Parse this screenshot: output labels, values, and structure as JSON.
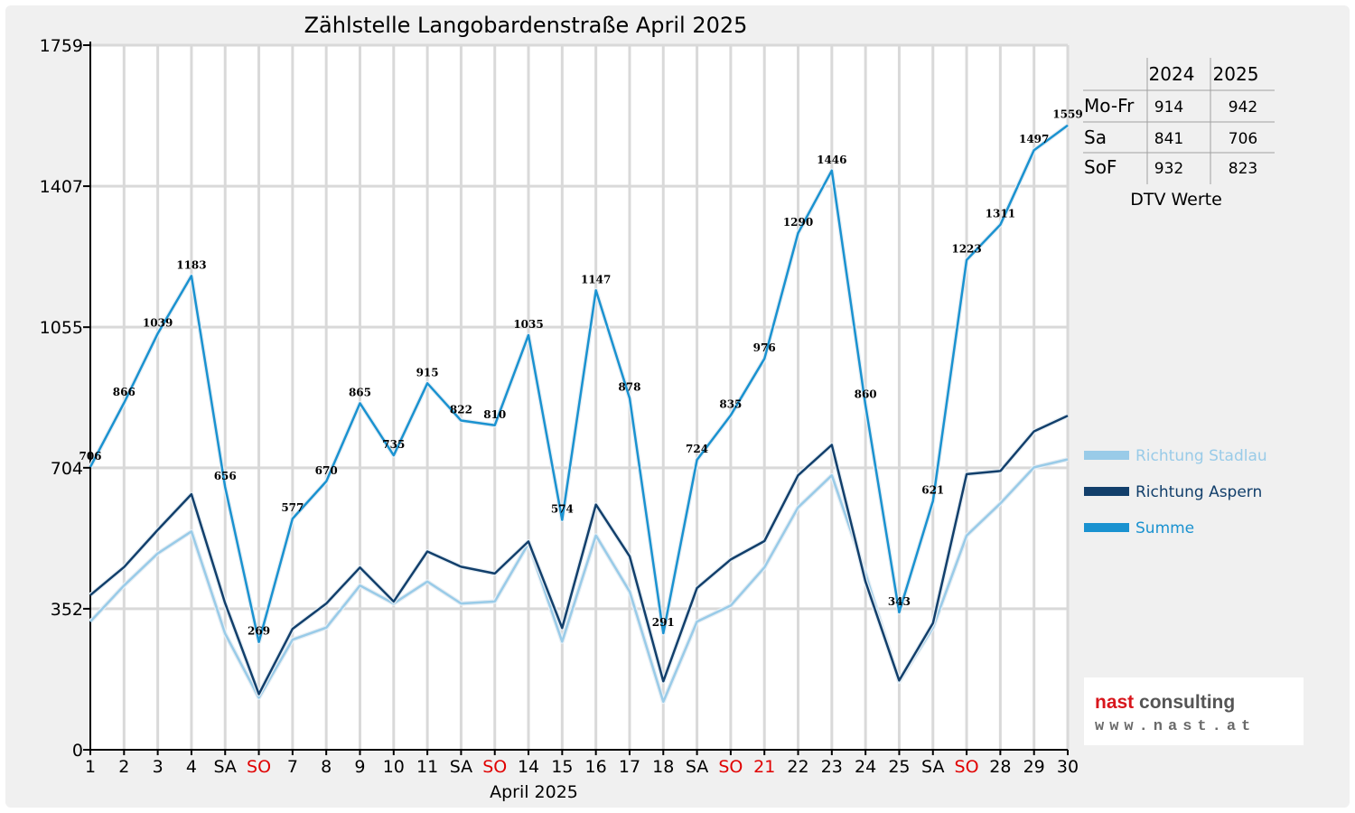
{
  "chart_data": {
    "type": "line",
    "title": "Zählstelle Langobardenstraße April 2025",
    "xlabel": "April 2025",
    "ylabel": "",
    "ylim": [
      0,
      1759
    ],
    "yticks": [
      0,
      352,
      704,
      1055,
      1407,
      1759
    ],
    "grid": true,
    "legend_position": "right",
    "categories": [
      "1",
      "2",
      "3",
      "4",
      "SA",
      "SO",
      "7",
      "8",
      "9",
      "10",
      "11",
      "SA",
      "SO",
      "14",
      "15",
      "16",
      "17",
      "18",
      "SA",
      "SO",
      "21",
      "22",
      "23",
      "24",
      "25",
      "SA",
      "SO",
      "28",
      "29",
      "30"
    ],
    "red_categories": [
      5,
      12,
      19,
      20,
      26
    ],
    "series": [
      {
        "name": "Richtung Stadlau",
        "color": "#99cbe8",
        "values": [
          320,
          410,
          490,
          545,
          290,
          130,
          275,
          305,
          410,
          365,
          420,
          365,
          370,
          515,
          270,
          535,
          395,
          120,
          320,
          360,
          455,
          605,
          685,
          440,
          170,
          305,
          535,
          615,
          705,
          725
        ]
      },
      {
        "name": "Richtung Aspern",
        "color": "#123f6b",
        "values": [
          386,
          456,
          549,
          638,
          366,
          139,
          302,
          365,
          455,
          370,
          495,
          457,
          440,
          520,
          304,
          612,
          483,
          171,
          404,
          475,
          521,
          685,
          761,
          420,
          173,
          316,
          688,
          696,
          795,
          834
        ]
      },
      {
        "name": "Summe",
        "color": "#1a92d0",
        "values": [
          706,
          866,
          1039,
          1183,
          656,
          269,
          577,
          670,
          865,
          735,
          915,
          822,
          810,
          1035,
          574,
          1147,
          878,
          291,
          724,
          835,
          976,
          1290,
          1446,
          860,
          343,
          621,
          1223,
          1311,
          1497,
          1559
        ],
        "labels": [
          "706",
          "866",
          "1039",
          "1183",
          "656",
          "269",
          "577",
          "670",
          "865",
          "735",
          "915",
          "822",
          "810",
          "1035",
          "574",
          "1147",
          "878",
          "291",
          "724",
          "835",
          "976",
          "1290",
          "1446",
          "860",
          "343",
          "621",
          "1223",
          "1311",
          "1497",
          "1559"
        ]
      }
    ]
  },
  "dtv_table": {
    "columns": [
      "2024",
      "2025"
    ],
    "rows": [
      {
        "label": "Mo-Fr",
        "v2024": "914",
        "v2025": "942"
      },
      {
        "label": "Sa",
        "v2024": "841",
        "v2025": "706"
      },
      {
        "label": "SoF",
        "v2024": "932",
        "v2025": "823"
      }
    ],
    "caption": "DTV Werte"
  },
  "logo": {
    "name_part1": "nast",
    "name_part2": "consulting",
    "url": "www.nast.at",
    "color1": "#d8161c",
    "color2": "#555555"
  },
  "colors": {
    "holiday_red": "#e00000",
    "grid": "#d9d9d9"
  }
}
